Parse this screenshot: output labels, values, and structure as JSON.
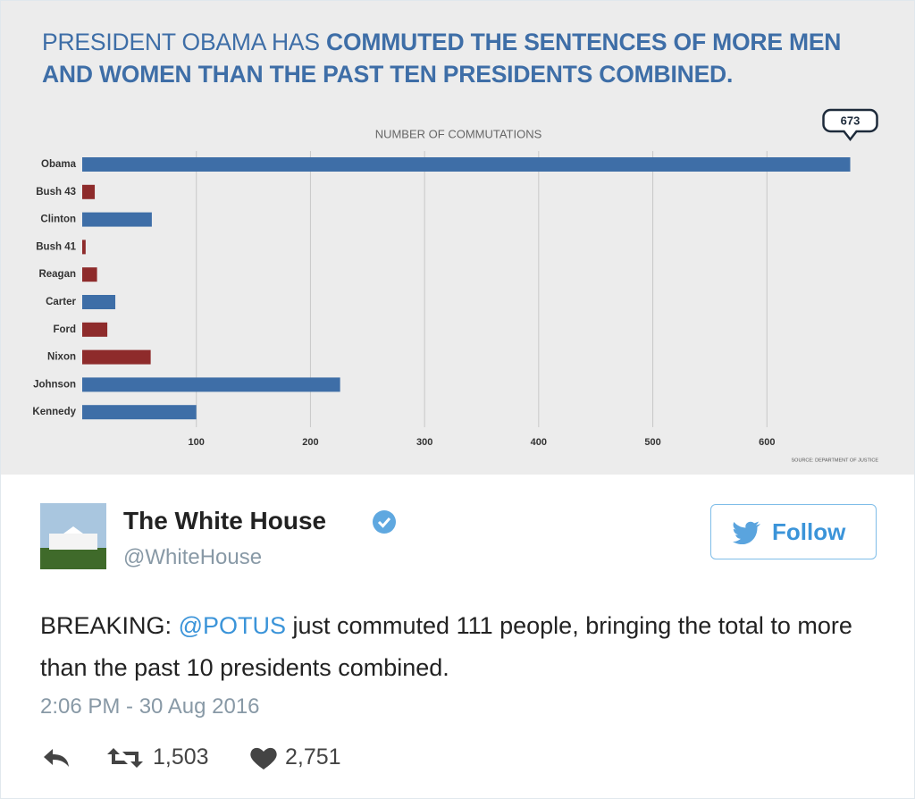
{
  "chart_data": {
    "type": "hbar",
    "title": {
      "lead": "PRESIDENT OBAMA HAS",
      "emphasis": "COMMUTED THE SENTENCES OF MORE MEN AND WOMEN THAN THE PAST TEN PRESIDENTS COMBINED."
    },
    "xlabel": "NUMBER OF COMMUTATIONS",
    "source": "SOURCE: DEPARTMENT OF JUSTICE",
    "categories": [
      "Obama",
      "Bush 43",
      "Clinton",
      "Bush 41",
      "Reagan",
      "Carter",
      "Ford",
      "Nixon",
      "Johnson",
      "Kennedy"
    ],
    "values": [
      673,
      11,
      61,
      3,
      13,
      29,
      22,
      60,
      226,
      100
    ],
    "value_labels": [
      "673",
      null,
      null,
      null,
      null,
      null,
      null,
      null,
      null,
      null
    ],
    "colors": [
      "#3e6ea7",
      "#8e2b2b",
      "#3e6ea7",
      "#8e2b2b",
      "#8e2b2b",
      "#3e6ea7",
      "#8e2b2b",
      "#8e2b2b",
      "#3e6ea7",
      "#3e6ea7"
    ],
    "xlim": [
      0,
      700
    ],
    "xticks": [
      100,
      200,
      300,
      400,
      500,
      600
    ],
    "grid": true
  },
  "tweet": {
    "name": "The White House",
    "handle": "@WhiteHouse",
    "follow": "Follow",
    "text": {
      "lead": "BREAKING:",
      "mention": "@POTUS",
      "rest": "just commuted 111 people, bringing the total to more than the past 10 presidents combined."
    },
    "timestamp": "2:06 PM - 30 Aug 2016",
    "retweets": "1,503",
    "likes": "2,751"
  }
}
